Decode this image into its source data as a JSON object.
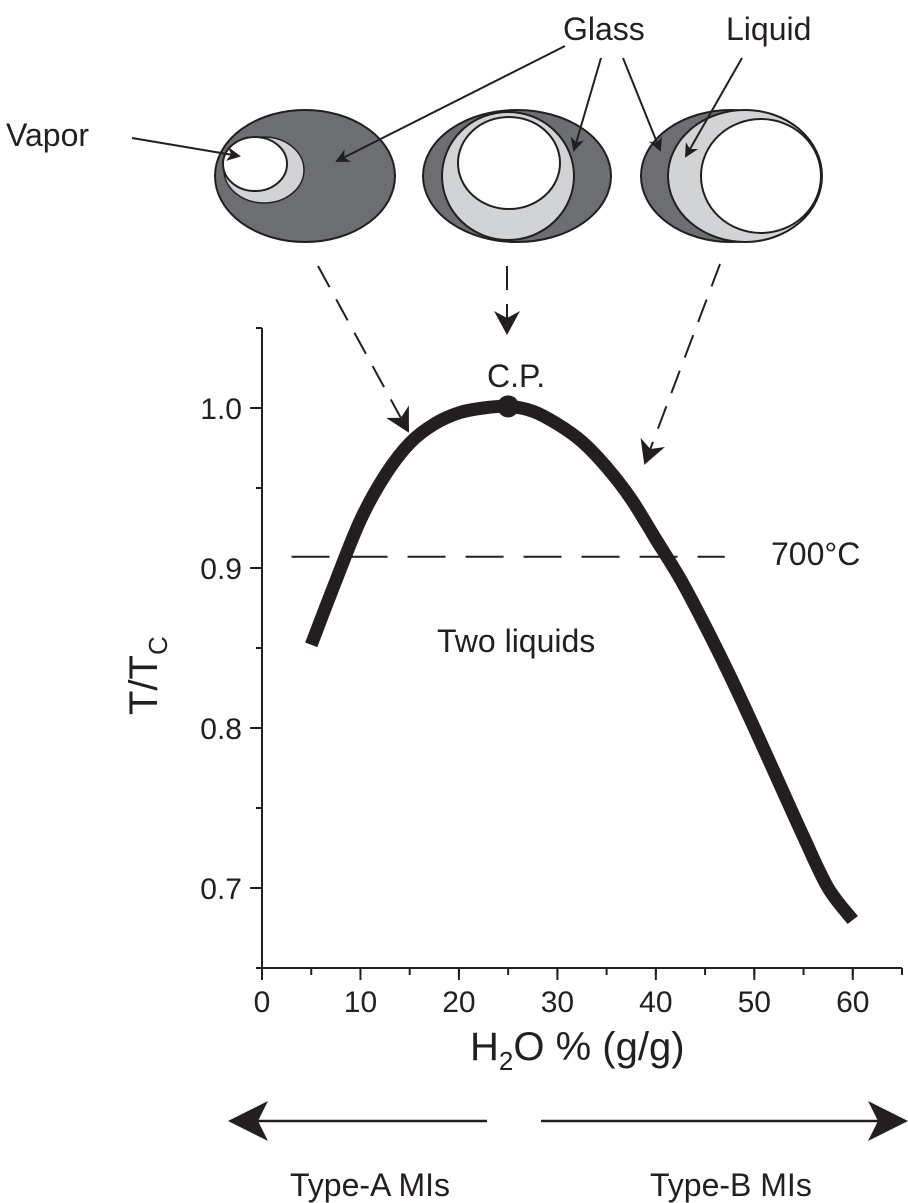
{
  "labels": {
    "vapor": "Vapor",
    "glass": "Glass",
    "liquid": "Liquid",
    "cp": "C.P.",
    "isotherm": "700°C",
    "region": "Two liquids",
    "type_a": "Type-A MIs",
    "type_b": "Type-B MIs"
  },
  "colors": {
    "ink": "#231f20",
    "glass": "#6d6e71",
    "liquid": "#d1d3d4",
    "vapor": "#ffffff"
  },
  "chart_data": {
    "type": "line",
    "x_axis": {
      "label_main": "H",
      "label_sub": "2",
      "label_rest": "O % (g/g)",
      "range": [
        0,
        65
      ],
      "ticks": [
        0,
        10,
        20,
        30,
        40,
        50,
        60
      ],
      "tick_labels": [
        "0",
        "10",
        "20",
        "30",
        "40",
        "50",
        "60"
      ],
      "minor_step": 5
    },
    "y_axis": {
      "label_main": "T/T",
      "label_sub": "C",
      "range": [
        0.65,
        1.05
      ],
      "ticks": [
        0.7,
        0.8,
        0.9,
        1.0
      ],
      "tick_labels": [
        "0.7",
        "0.8",
        "0.9",
        "1.0"
      ],
      "minor_step": 0.05
    },
    "series": [
      {
        "curve": "solvus",
        "x": [
          5,
          7.5,
          10,
          12.5,
          15,
          17.5,
          20,
          22.5,
          25,
          27.5,
          30,
          32.5,
          35,
          37.5,
          40,
          42.5,
          45,
          47.5,
          50,
          52.5,
          55,
          57.5,
          60
        ],
        "y": [
          0.852,
          0.892,
          0.93,
          0.958,
          0.978,
          0.99,
          0.997,
          1.0,
          1.001,
          0.998,
          0.99,
          0.979,
          0.963,
          0.943,
          0.918,
          0.893,
          0.864,
          0.833,
          0.8,
          0.766,
          0.732,
          0.7,
          0.68
        ]
      }
    ],
    "critical_point": {
      "x": 25,
      "y": 1.001,
      "label": "C.P."
    },
    "isotherm": {
      "y": 0.907,
      "x_range": [
        3,
        47
      ],
      "label": "700°C"
    }
  }
}
